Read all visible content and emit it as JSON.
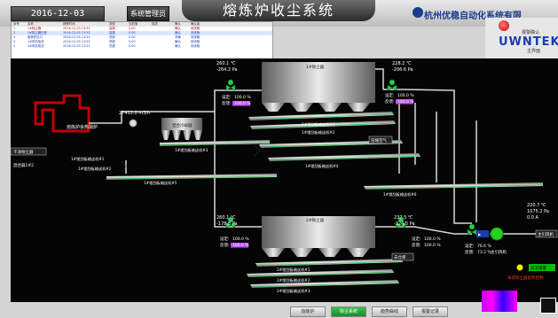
{
  "header": {
    "datetime": "2016-12-03 13:34:44",
    "mgmt_button": "系统管理员",
    "title": "熔炼炉收尘系统",
    "company": "杭州优稳自动化系统有限"
  },
  "alarm_table": {
    "headers": [
      "序号",
      "名称",
      "报警时间",
      "类型",
      "当前值",
      "描述",
      "确认",
      "确认者"
    ],
    "rows": [
      {
        "style": "red",
        "cells": [
          "1",
          "1#除尘器",
          "2016-12-03 13:33",
          "高报",
          "0.00",
          "",
          "确认",
          "系统管"
        ]
      },
      {
        "style": "blue",
        "cells": [
          "2",
          "2#除尘器压差",
          "2016-12-03 13:33",
          "高报",
          "0.00",
          "",
          "确认",
          "系统管"
        ]
      },
      {
        "style": "blue",
        "cells": [
          "3",
          "熔炼炉出口",
          "2016-12-03 13:33",
          "低报",
          "0.00",
          "",
          "未确",
          "系统管"
        ]
      },
      {
        "style": "blue",
        "cells": [
          "4",
          "1#风机电流",
          "2016-12-03 13:33",
          "低报",
          "0.00",
          "",
          "确认",
          "系统管"
        ]
      },
      {
        "style": "blue",
        "cells": [
          "5",
          "2#风机电流",
          "2016-12-03 13:33",
          "低报",
          "0.00",
          "",
          "确认",
          "系统管"
        ]
      }
    ]
  },
  "right_panel": {
    "alarm_label": "报警确认",
    "logo": "UWNTEK",
    "main_ui": "主界面"
  },
  "diagram": {
    "furnace_label": "熔炼炉余热锅炉",
    "flow_value": "27412.0 m3/h",
    "mixer_label": "混合冷却器",
    "left_input": "干净除尘器",
    "left_input_sub": "混合器1#2",
    "top_inlet": {
      "temp": "260.1 ℃",
      "press": "-264.2 Pa"
    },
    "top_outlet": {
      "temp": "228.2 ℃",
      "press": "-206.6 Pa"
    },
    "bottom_inlet": {
      "temp": "260.1 ℃",
      "press": "-178.8 Pa"
    },
    "bottom_outlet": {
      "temp": "237.5 ℃",
      "press": "-224.5 Pa"
    },
    "dust_top": "1#除尘器",
    "dust_bottom": "2#除尘器",
    "valve_rows": [
      {
        "label": "设定:",
        "value": "100.0 %"
      },
      {
        "label": "反馈:",
        "value": "100.0 %"
      }
    ],
    "fan": {
      "temp": "220.7 ℃",
      "press": "1075.2 Pa",
      "current": "0.0 A",
      "label": "主引风机",
      "out_label": "主引风机"
    },
    "fan_valves": [
      {
        "label": "设定:",
        "value": "76.6 %"
      },
      {
        "label": "反馈:",
        "value": "73.2 %"
      }
    ],
    "conveyor_labels": [
      "1#埋刮板输送机#1",
      "1#埋刮板输送机#2",
      "1#埋刮板输送机#3",
      "1#埋刮板输送机#4",
      "1#埋刮板输送机#5",
      "1#埋刮板输送机#6",
      "2#埋刮板输送机#1",
      "2#埋刮板输送机#2",
      "2#埋刮板输送机#3"
    ],
    "ash_out": "去仓库",
    "air_label": "压缩空气",
    "bottom_warn": "布袋除尘器反吹控制",
    "legend_label": "高温报警"
  },
  "footer": {
    "buttons": [
      "熔炼炉",
      "除尘系统",
      "趋势曲线",
      "报警记录"
    ],
    "active_index": 1
  },
  "colors": {
    "pipe": "#d8d8d8",
    "valve": "#1fd14a",
    "highlight": "#c04dff",
    "fan": "#28d020",
    "furnace": "#b00000"
  }
}
